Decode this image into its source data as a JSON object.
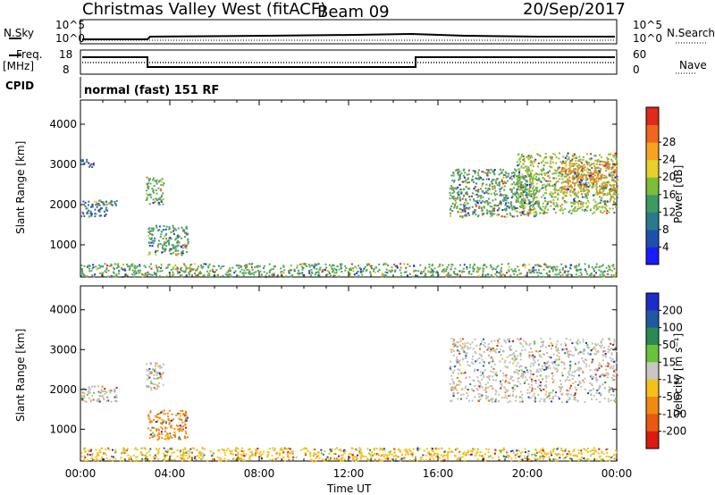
{
  "header": {
    "station_title": "Christmas Valley West (fitACF)",
    "beam": "Beam 09",
    "date": "20/Sep/2017"
  },
  "params": {
    "nsky_label": "N.Sky",
    "nsearch_label": "N.Search",
    "freq_label_1": "Freq.",
    "freq_label_2": "[MHz]",
    "nave_label": "Nave",
    "cpid_label": "CPID",
    "cpid_value": "normal (fast) 151 RF",
    "noise_left_ticks": [
      "10^5",
      "10^0"
    ],
    "noise_right_ticks": [
      "10^5",
      "10^0"
    ],
    "freq_ticks": [
      "18",
      "8"
    ],
    "nave_ticks": [
      "60",
      "0"
    ]
  },
  "chart_data": [
    {
      "type": "heatmap",
      "name": "power-panel",
      "ylabel": "Slant Range [km]",
      "yticks": [
        1000,
        2000,
        3000,
        4000
      ],
      "ylim": [
        200,
        4600
      ],
      "xlim": [
        0,
        24
      ],
      "colorbar": {
        "label": "Power [dB]",
        "ticks": [
          "4",
          "8",
          "12",
          "16",
          "20",
          "24",
          "28"
        ],
        "colors": [
          "#1a1aff",
          "#1e4fb0",
          "#2a7a8c",
          "#3d9a63",
          "#7bbd3c",
          "#e8d02a",
          "#f5a323",
          "#f0661e",
          "#e02a1a"
        ]
      },
      "regions": [
        {
          "t0": 0.0,
          "t1": 1.2,
          "r0": 1700,
          "r1": 2100,
          "color": "#2a6aa8"
        },
        {
          "t0": 0.0,
          "t1": 0.6,
          "r0": 2950,
          "r1": 3150,
          "color": "#2a6aa8"
        },
        {
          "t0": 0.8,
          "t1": 1.6,
          "r0": 2000,
          "r1": 2200,
          "color": "#3a8a7a"
        },
        {
          "t0": 2.9,
          "t1": 3.7,
          "r0": 2000,
          "r1": 2700,
          "color": "#5aa85a"
        },
        {
          "t0": 3.0,
          "t1": 4.8,
          "r0": 750,
          "r1": 1500,
          "color": "#4aa06a"
        },
        {
          "t0": 16.5,
          "t1": 20.5,
          "r0": 1700,
          "r1": 2900,
          "color": "#5aa05a"
        },
        {
          "t0": 19.5,
          "t1": 24.0,
          "r0": 1800,
          "r1": 3300,
          "color": "#8bbf3e"
        },
        {
          "t0": 21.5,
          "t1": 24.0,
          "r0": 2300,
          "r1": 3100,
          "color": "#f08a1e"
        },
        {
          "t0": 0.0,
          "t1": 24.0,
          "r0": 220,
          "r1": 550,
          "color": "#5aa85a"
        }
      ]
    },
    {
      "type": "heatmap",
      "name": "velocity-panel",
      "ylabel": "Slant Range [km]",
      "xlabel": "Time UT",
      "xticks": [
        "00:00",
        "04:00",
        "08:00",
        "12:00",
        "16:00",
        "20:00",
        "00:00"
      ],
      "yticks": [
        1000,
        2000,
        3000,
        4000
      ],
      "ylim": [
        200,
        4600
      ],
      "xlim": [
        0,
        24
      ],
      "colorbar": {
        "label": "Velocity [m s⁻¹]",
        "ticks": [
          "200",
          "100",
          "50",
          "15",
          "-15",
          "-50",
          "-100",
          "-200"
        ],
        "colors": [
          "#1c2ccc",
          "#1f5aa0",
          "#2a8a52",
          "#6ac23a",
          "#c8c8c0",
          "#f5c018",
          "#f08a12",
          "#e85a10",
          "#dc1a10"
        ]
      },
      "regions": [
        {
          "t0": 0.0,
          "t1": 1.6,
          "r0": 1700,
          "r1": 2100,
          "color": "#c0c0b8"
        },
        {
          "t0": 2.9,
          "t1": 3.7,
          "r0": 2000,
          "r1": 2700,
          "color": "#c0c0b8"
        },
        {
          "t0": 3.0,
          "t1": 4.8,
          "r0": 750,
          "r1": 1500,
          "color": "#f08a12"
        },
        {
          "t0": 16.5,
          "t1": 24.0,
          "r0": 1700,
          "r1": 3300,
          "color": "#c0c0b8"
        },
        {
          "t0": 0.0,
          "t1": 24.0,
          "r0": 220,
          "r1": 550,
          "color": "#f5c018"
        }
      ]
    }
  ]
}
